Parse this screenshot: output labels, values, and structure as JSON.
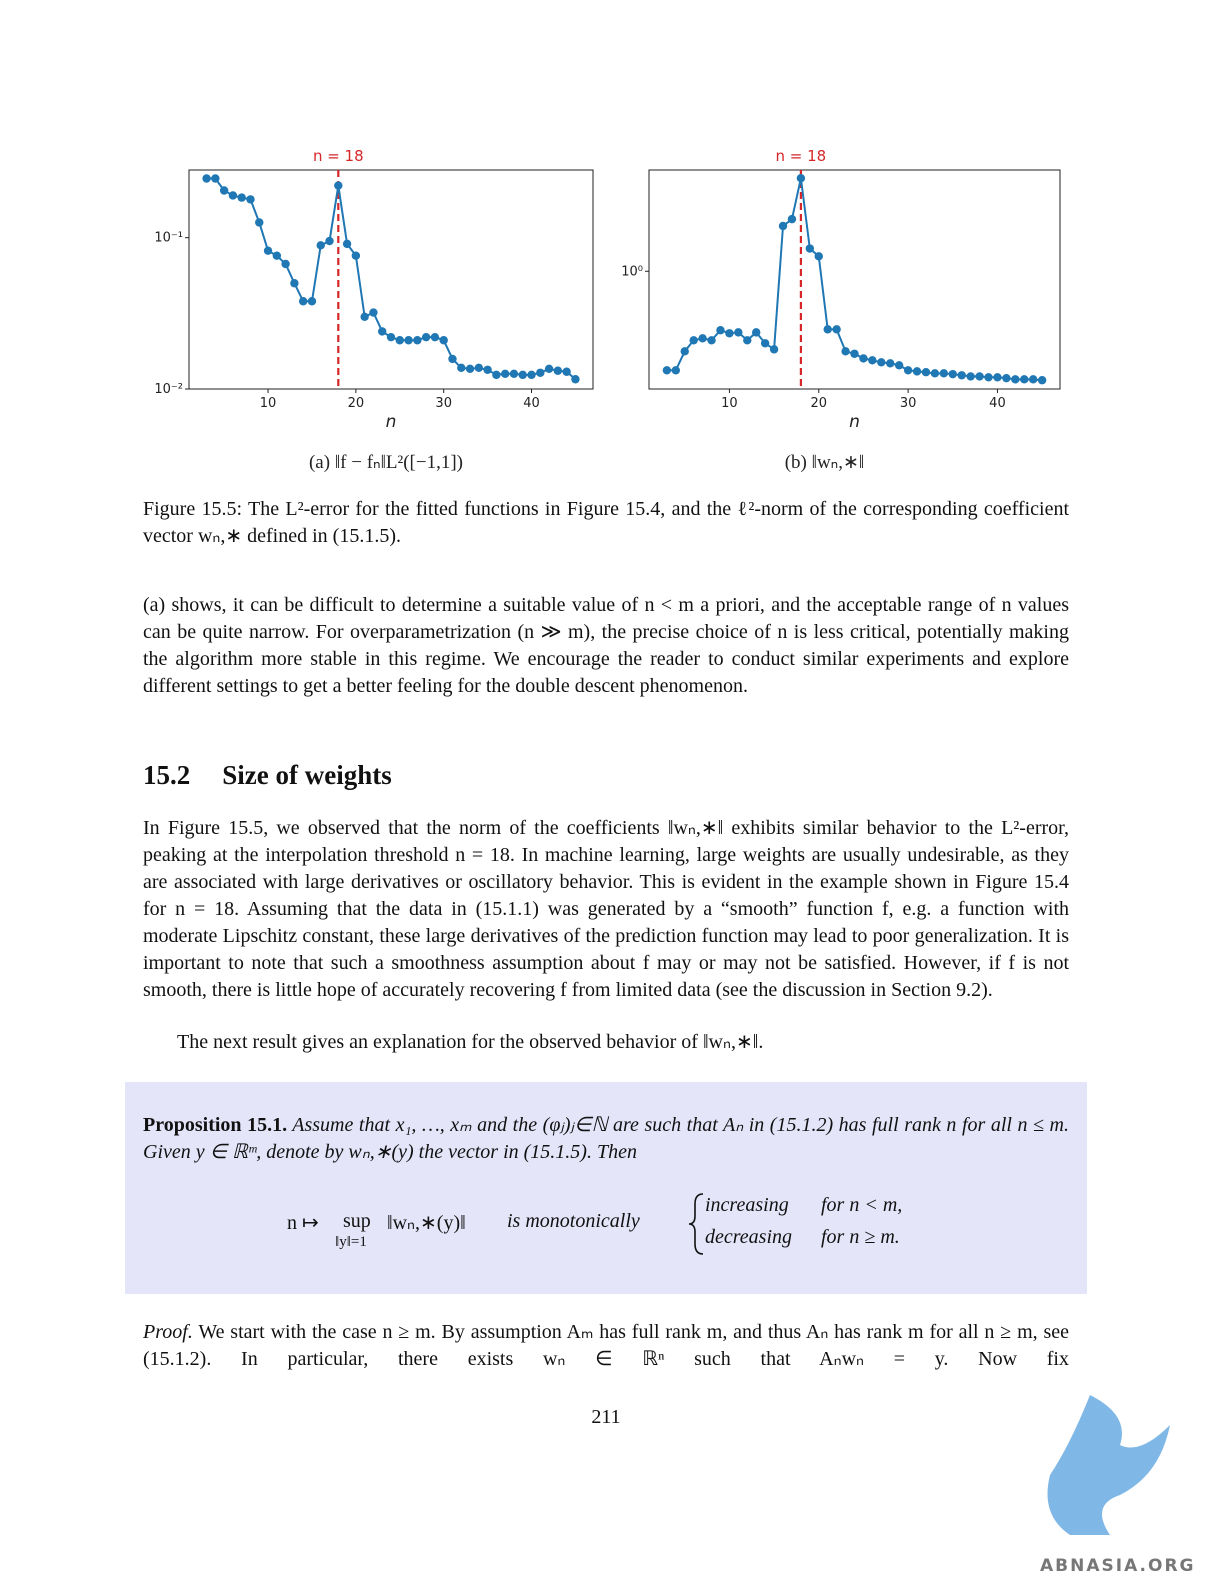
{
  "chart_data": [
    {
      "type": "line",
      "x": [
        3,
        4,
        5,
        6,
        7,
        8,
        9,
        10,
        11,
        12,
        13,
        14,
        15,
        16,
        17,
        18,
        19,
        20,
        21,
        22,
        23,
        24,
        25,
        26,
        27,
        28,
        29,
        30,
        31,
        32,
        33,
        34,
        35,
        36,
        37,
        38,
        39,
        40,
        41,
        42,
        43,
        44,
        45
      ],
      "values": [
        0.246,
        0.246,
        0.205,
        0.19,
        0.184,
        0.179,
        0.126,
        0.082,
        0.076,
        0.067,
        0.05,
        0.038,
        0.038,
        0.089,
        0.095,
        0.221,
        0.091,
        0.076,
        0.03,
        0.032,
        0.024,
        0.022,
        0.021,
        0.021,
        0.021,
        0.022,
        0.022,
        0.021,
        0.0158,
        0.0138,
        0.0136,
        0.0138,
        0.0134,
        0.0124,
        0.0126,
        0.0126,
        0.0124,
        0.0124,
        0.0128,
        0.0136,
        0.0132,
        0.013,
        0.0116
      ],
      "color": "#1f77b4",
      "log_y": true,
      "xlim": [
        1,
        47
      ],
      "ylim": [
        0.01,
        0.28
      ],
      "xticks": [
        10,
        20,
        30,
        40
      ],
      "yticks": [
        {
          "value": 0.1,
          "label": "10⁻¹"
        },
        {
          "value": 0.01,
          "label": "10⁻²"
        }
      ],
      "xlabel": "n",
      "vline": {
        "x": 18,
        "label": "n = 18",
        "color": "#d62728"
      },
      "caption": "(a) ‖f − fₙ‖L²([−1,1])"
    },
    {
      "type": "line",
      "x": [
        3,
        4,
        5,
        6,
        7,
        8,
        9,
        10,
        11,
        12,
        13,
        14,
        15,
        16,
        17,
        18,
        19,
        20,
        21,
        22,
        23,
        24,
        25,
        26,
        27,
        28,
        29,
        30,
        31,
        32,
        33,
        34,
        35,
        36,
        37,
        38,
        39,
        40,
        41,
        42,
        43,
        44,
        45
      ],
      "values": [
        0.353,
        0.353,
        0.431,
        0.484,
        0.494,
        0.484,
        0.538,
        0.521,
        0.526,
        0.484,
        0.526,
        0.469,
        0.44,
        1.61,
        1.73,
        2.66,
        1.27,
        1.17,
        0.543,
        0.543,
        0.431,
        0.42,
        0.4,
        0.392,
        0.384,
        0.38,
        0.372,
        0.353,
        0.349,
        0.346,
        0.342,
        0.342,
        0.339,
        0.335,
        0.331,
        0.331,
        0.328,
        0.328,
        0.325,
        0.321,
        0.321,
        0.321,
        0.318
      ],
      "color": "#1f77b4",
      "log_y": true,
      "xlim": [
        1,
        47
      ],
      "ylim": [
        0.29,
        2.9
      ],
      "xticks": [
        10,
        20,
        30,
        40
      ],
      "yticks": [
        {
          "value": 1,
          "label": "10⁰"
        }
      ],
      "xlabel": "n",
      "vline": {
        "x": 18,
        "label": "n = 18",
        "color": "#d62728"
      },
      "caption": "(b) ‖wₙ,∗‖"
    }
  ],
  "figure_caption": "Figure 15.5: The L²-error for the fitted functions in Figure 15.4, and the ℓ²-norm of the corresponding coefficient vector wₙ,∗ defined in (15.1.5).",
  "paragraph_1": "(a) shows, it can be difficult to determine a suitable value of n < m a priori, and the acceptable range of n values can be quite narrow. For overparametrization (n ≫ m), the precise choice of n is less critical, potentially making the algorithm more stable in this regime. We encourage the reader to conduct similar experiments and explore different settings to get a better feeling for the double descent phenomenon.",
  "section": {
    "number": "15.2",
    "title": "Size of weights"
  },
  "paragraph_2": "In Figure 15.5, we observed that the norm of the coefficients ‖wₙ,∗‖ exhibits similar behavior to the L²-error, peaking at the interpolation threshold n = 18. In machine learning, large weights are usually undesirable, as they are associated with large derivatives or oscillatory behavior. This is evident in the example shown in Figure 15.4 for n = 18. Assuming that the data in (15.1.1) was generated by a “smooth” function f, e.g. a function with moderate Lipschitz constant, these large derivatives of the prediction function may lead to poor generalization. It is important to note that such a smoothness assumption about f may or may not be satisfied. However, if f is not smooth, there is little hope of accurately recovering f from limited data (see the discussion in Section 9.2).",
  "paragraph_3": "The next result gives an explanation for the observed behavior of ‖wₙ,∗‖.",
  "proposition": {
    "label": "Proposition 15.1.",
    "body": "Assume that x₁, …, xₘ and the (φⱼ)ⱼ∈ℕ are such that Aₙ in (15.1.2) has full rank n for all n ≤ m. Given y ∈ ℝᵐ, denote by wₙ,∗(y) the vector in (15.1.5). Then",
    "display": {
      "map": "n ↦",
      "sup": "sup",
      "sup_under": "‖y‖=1",
      "norm": "‖wₙ,∗(y)‖",
      "middle": "is monotonically",
      "cases": [
        [
          "increasing",
          "for n < m,"
        ],
        [
          "decreasing",
          "for n ≥ m."
        ]
      ]
    }
  },
  "proof": {
    "label": "Proof.",
    "body": "We start with the case n ≥ m. By assumption Aₘ has full rank m, and thus Aₙ has rank m for all n ≥ m, see (15.1.2). In particular, there exists wₙ ∈ ℝⁿ such that Aₙwₙ = y. Now fix"
  },
  "page_number": "211",
  "watermark": "ABNASIA.ORG"
}
